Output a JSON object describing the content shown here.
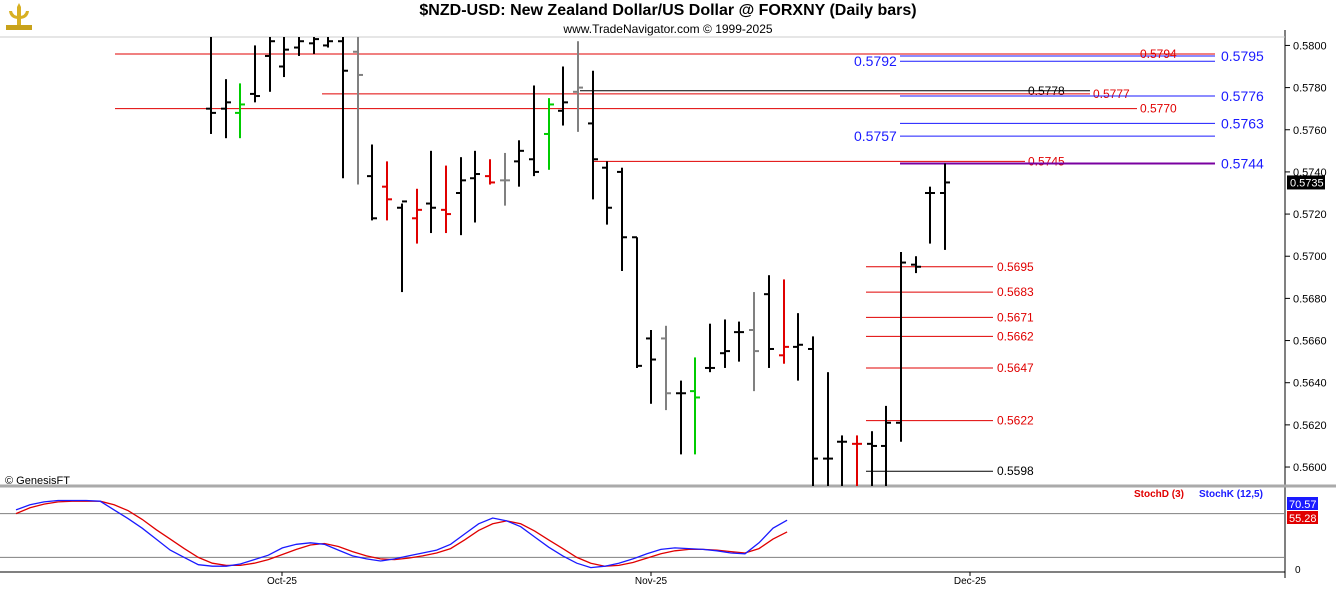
{
  "header": {
    "title": "$NZD-USD:  New Zealand Dollar/US Dollar @ FORXNY  (Daily bars)",
    "subtitle": "www.TradeNavigator.com © 1999-2025",
    "copyright": "© GenesisFT"
  },
  "colors": {
    "up": "#000000",
    "down": "#e00000",
    "neutral": "#808080",
    "green": "#00cc00",
    "stochD": "#e00000",
    "stochK": "#1a1aff",
    "level_red": "#e00000",
    "level_blue": "#1a1aff"
  },
  "chart_data": {
    "type": "ohlc",
    "price_axis": {
      "min": 0.5591,
      "max": 0.5804,
      "ticks": [
        "0.5800",
        "0.5780",
        "0.5760",
        "0.5740",
        "0.5720",
        "0.5700",
        "0.5680",
        "0.5660",
        "0.5640",
        "0.5620",
        "0.5600"
      ]
    },
    "last_price": "0.5735",
    "x_labels": [
      "Oct-25",
      "Nov-25",
      "Dec-25"
    ],
    "bars": [
      {
        "h": 0.5804,
        "l": 0.5758,
        "o": 0.577,
        "c": 0.5768,
        "k": "u"
      },
      {
        "h": 0.5784,
        "l": 0.5756,
        "o": 0.577,
        "c": 0.5773,
        "k": "u"
      },
      {
        "h": 0.5782,
        "l": 0.5756,
        "o": 0.5768,
        "c": 0.5772,
        "k": "g"
      },
      {
        "h": 0.58,
        "l": 0.5773,
        "o": 0.5777,
        "c": 0.5776,
        "k": "u"
      },
      {
        "h": 0.5804,
        "l": 0.5778,
        "o": 0.5795,
        "c": 0.5802,
        "k": "u"
      },
      {
        "h": 0.5804,
        "l": 0.5785,
        "o": 0.579,
        "c": 0.5798,
        "k": "u"
      },
      {
        "h": 0.5804,
        "l": 0.5795,
        "o": 0.5799,
        "c": 0.5802,
        "k": "u"
      },
      {
        "h": 0.5804,
        "l": 0.5796,
        "o": 0.5801,
        "c": 0.5803,
        "k": "u"
      },
      {
        "h": 0.5804,
        "l": 0.5799,
        "o": 0.58,
        "c": 0.5802,
        "k": "u"
      },
      {
        "h": 0.5804,
        "l": 0.5737,
        "o": 0.5802,
        "c": 0.5788,
        "k": "u"
      },
      {
        "h": 0.5804,
        "l": 0.5734,
        "o": 0.5797,
        "c": 0.5786,
        "k": "n"
      },
      {
        "h": 0.5753,
        "l": 0.5717,
        "o": 0.5738,
        "c": 0.5718,
        "k": "u"
      },
      {
        "h": 0.5745,
        "l": 0.5717,
        "o": 0.5733,
        "c": 0.5727,
        "k": "d"
      },
      {
        "h": 0.5725,
        "l": 0.5683,
        "o": 0.5723,
        "c": 0.5726,
        "k": "u"
      },
      {
        "h": 0.5732,
        "l": 0.5706,
        "o": 0.5718,
        "c": 0.5722,
        "k": "d"
      },
      {
        "h": 0.575,
        "l": 0.5711,
        "o": 0.5725,
        "c": 0.5723,
        "k": "u"
      },
      {
        "h": 0.5743,
        "l": 0.5711,
        "o": 0.5722,
        "c": 0.572,
        "k": "d"
      },
      {
        "h": 0.5747,
        "l": 0.571,
        "o": 0.573,
        "c": 0.5736,
        "k": "u"
      },
      {
        "h": 0.575,
        "l": 0.5716,
        "o": 0.5737,
        "c": 0.5739,
        "k": "u"
      },
      {
        "h": 0.5746,
        "l": 0.5734,
        "o": 0.5738,
        "c": 0.5735,
        "k": "d"
      },
      {
        "h": 0.5749,
        "l": 0.5724,
        "o": 0.5736,
        "c": 0.5736,
        "k": "n"
      },
      {
        "h": 0.5755,
        "l": 0.5733,
        "o": 0.5745,
        "c": 0.575,
        "k": "u"
      },
      {
        "h": 0.5781,
        "l": 0.5738,
        "o": 0.5746,
        "c": 0.574,
        "k": "u"
      },
      {
        "h": 0.5775,
        "l": 0.5741,
        "o": 0.5758,
        "c": 0.5772,
        "k": "g"
      },
      {
        "h": 0.579,
        "l": 0.5762,
        "o": 0.5769,
        "c": 0.5773,
        "k": "u"
      },
      {
        "h": 0.5802,
        "l": 0.5759,
        "o": 0.5778,
        "c": 0.578,
        "k": "n"
      },
      {
        "h": 0.5788,
        "l": 0.5727,
        "o": 0.5763,
        "c": 0.5746,
        "k": "u"
      },
      {
        "h": 0.5745,
        "l": 0.5715,
        "o": 0.5742,
        "c": 0.5723,
        "k": "u"
      },
      {
        "h": 0.5742,
        "l": 0.5693,
        "o": 0.574,
        "c": 0.5709,
        "k": "u"
      },
      {
        "h": 0.5709,
        "l": 0.5647,
        "o": 0.5709,
        "c": 0.5648,
        "k": "u"
      },
      {
        "h": 0.5665,
        "l": 0.563,
        "o": 0.5661,
        "c": 0.5651,
        "k": "u"
      },
      {
        "h": 0.5667,
        "l": 0.5627,
        "o": 0.5661,
        "c": 0.5635,
        "k": "n"
      },
      {
        "h": 0.5641,
        "l": 0.5606,
        "o": 0.5635,
        "c": 0.5635,
        "k": "u"
      },
      {
        "h": 0.5652,
        "l": 0.5606,
        "o": 0.5636,
        "c": 0.5633,
        "k": "g"
      },
      {
        "h": 0.5668,
        "l": 0.5645,
        "o": 0.5647,
        "c": 0.5647,
        "k": "u"
      },
      {
        "h": 0.567,
        "l": 0.5647,
        "o": 0.5654,
        "c": 0.5655,
        "k": "u"
      },
      {
        "h": 0.5669,
        "l": 0.565,
        "o": 0.5664,
        "c": 0.5664,
        "k": "u"
      },
      {
        "h": 0.5683,
        "l": 0.5636,
        "o": 0.5665,
        "c": 0.5655,
        "k": "n"
      },
      {
        "h": 0.5691,
        "l": 0.5647,
        "o": 0.5682,
        "c": 0.5656,
        "k": "u"
      },
      {
        "h": 0.5689,
        "l": 0.5649,
        "o": 0.5653,
        "c": 0.5657,
        "k": "d"
      },
      {
        "h": 0.5673,
        "l": 0.5641,
        "o": 0.5657,
        "c": 0.5658,
        "k": "u"
      },
      {
        "h": 0.5662,
        "l": 0.5591,
        "o": 0.5656,
        "c": 0.5604,
        "k": "u"
      },
      {
        "h": 0.5645,
        "l": 0.5591,
        "o": 0.5604,
        "c": 0.5604,
        "k": "u"
      },
      {
        "h": 0.5615,
        "l": 0.5591,
        "o": 0.5612,
        "c": 0.5612,
        "k": "u"
      },
      {
        "h": 0.5615,
        "l": 0.5591,
        "o": 0.5611,
        "c": 0.5611,
        "k": "d"
      },
      {
        "h": 0.5617,
        "l": 0.5591,
        "o": 0.5611,
        "c": 0.561,
        "k": "u"
      },
      {
        "h": 0.5629,
        "l": 0.5591,
        "o": 0.561,
        "c": 0.5621,
        "k": "u"
      },
      {
        "h": 0.5702,
        "l": 0.5612,
        "o": 0.5621,
        "c": 0.5697,
        "k": "u"
      },
      {
        "h": 0.57,
        "l": 0.5692,
        "o": 0.5696,
        "c": 0.5695,
        "k": "u"
      },
      {
        "h": 0.5733,
        "l": 0.5706,
        "o": 0.573,
        "c": 0.573,
        "k": "u"
      },
      {
        "h": 0.5744,
        "l": 0.5703,
        "o": 0.573,
        "c": 0.5735,
        "k": "u"
      }
    ],
    "levels": [
      {
        "price": 0.5795,
        "text": "0.5795",
        "big": true,
        "col": "blue"
      },
      {
        "price": 0.5794,
        "text": "0.5794",
        "big": false,
        "col": "red"
      },
      {
        "price": 0.5792,
        "text": "0.5792",
        "big": true,
        "col": "blue"
      },
      {
        "price": 0.5778,
        "text": "0.5778",
        "big": false,
        "col": "black"
      },
      {
        "price": 0.5777,
        "text": "0.5777",
        "big": false,
        "col": "red"
      },
      {
        "price": 0.5776,
        "text": "0.5776",
        "big": true,
        "col": "blue"
      },
      {
        "price": 0.577,
        "text": "0.5770",
        "big": false,
        "col": "red"
      },
      {
        "price": 0.5763,
        "text": "0.5763",
        "big": true,
        "col": "blue"
      },
      {
        "price": 0.5757,
        "text": "0.5757",
        "big": true,
        "col": "blue"
      },
      {
        "price": 0.5745,
        "text": "0.5745",
        "big": false,
        "col": "red"
      },
      {
        "price": 0.5744,
        "text": "0.5744",
        "big": true,
        "col": "blue"
      },
      {
        "price": 0.5695,
        "text": "0.5695",
        "big": false,
        "col": "red"
      },
      {
        "price": 0.5683,
        "text": "0.5683",
        "big": false,
        "col": "red"
      },
      {
        "price": 0.5671,
        "text": "0.5671",
        "big": false,
        "col": "red"
      },
      {
        "price": 0.5662,
        "text": "0.5662",
        "big": false,
        "col": "red"
      },
      {
        "price": 0.5647,
        "text": "0.5647",
        "big": false,
        "col": "red"
      },
      {
        "price": 0.5622,
        "text": "0.5622",
        "big": false,
        "col": "red"
      },
      {
        "price": 0.5598,
        "text": "0.5598",
        "big": false,
        "col": "black"
      }
    ],
    "stochastic": {
      "d_label": "StochD (3)",
      "k_label": "StochK (12,5)",
      "k_value": "70.57",
      "d_value": "55.28",
      "axis_label": "0",
      "stochK": [
        85,
        92,
        96,
        98,
        98,
        98,
        97,
        85,
        73,
        60,
        45,
        30,
        20,
        10,
        8,
        8,
        11,
        17,
        23,
        33,
        38,
        40,
        38,
        30,
        22,
        18,
        15,
        18,
        22,
        26,
        30,
        38,
        52,
        66,
        74,
        70,
        62,
        48,
        34,
        22,
        12,
        6,
        8,
        12,
        18,
        25,
        31,
        33,
        32,
        31,
        29,
        26,
        25,
        40,
        60,
        71
      ],
      "stochD": [
        80,
        88,
        93,
        96,
        97,
        97,
        97,
        92,
        84,
        72,
        58,
        45,
        32,
        20,
        12,
        9,
        9,
        12,
        17,
        24,
        31,
        37,
        39,
        35,
        28,
        22,
        18,
        17,
        19,
        22,
        26,
        32,
        44,
        57,
        66,
        70,
        66,
        56,
        44,
        32,
        20,
        12,
        8,
        9,
        13,
        19,
        25,
        29,
        31,
        31,
        30,
        28,
        26,
        32,
        45,
        55
      ]
    }
  }
}
